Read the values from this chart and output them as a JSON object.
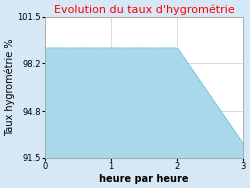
{
  "title": "Evolution du taux d'hygrométrie",
  "title_color": "#ff0000",
  "xlabel": "heure par heure",
  "ylabel": "Taux hygrométrie %",
  "x_values": [
    0,
    2,
    3
  ],
  "y_values": [
    99.3,
    99.3,
    92.5
  ],
  "ylim": [
    91.5,
    101.5
  ],
  "xlim": [
    0,
    3
  ],
  "yticks": [
    91.5,
    94.8,
    98.2,
    101.5
  ],
  "xticks": [
    0,
    1,
    2,
    3
  ],
  "line_color": "#5bb8d4",
  "fill_color": "#a8d8ea",
  "background_color": "#d6e8f5",
  "plot_bg_color": "#ffffff",
  "title_fontsize": 8,
  "label_fontsize": 7,
  "tick_fontsize": 6
}
